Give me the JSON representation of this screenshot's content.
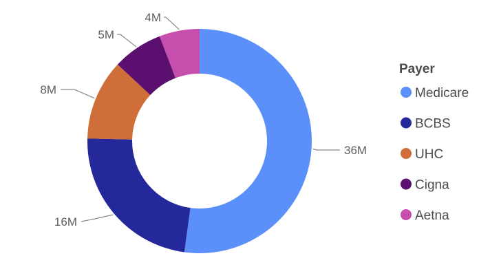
{
  "chart_data": {
    "type": "pie",
    "donut": true,
    "legend_title": "Payer",
    "legend_placement": "right",
    "categories": [
      "Medicare",
      "BCBS",
      "UHC",
      "Cigna",
      "Aetna"
    ],
    "values": [
      36,
      16,
      8,
      5,
      4
    ],
    "value_labels": [
      "36M",
      "16M",
      "8M",
      "5M",
      "4M"
    ],
    "colors": [
      "#5b8ff9",
      "#24289a",
      "#cf6e38",
      "#5b106f",
      "#c64fad"
    ]
  }
}
